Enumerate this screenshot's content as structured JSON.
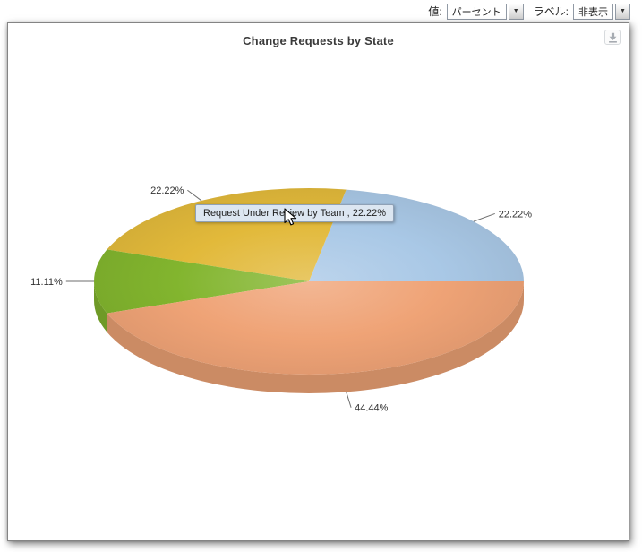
{
  "toolbar": {
    "value_label": "値:",
    "value_combobox": {
      "value": "パーセント",
      "expanded": false
    },
    "label_label": "ラベル:",
    "label_combobox": {
      "value": "非表示",
      "expanded": false
    }
  },
  "icons": {
    "chevron_down": "▼",
    "download": "download-icon"
  },
  "tooltip": {
    "text": "Request Under Review by Team , 22.22%"
  },
  "chart_data": {
    "type": "pie",
    "title": "Change Requests by State",
    "effect": "3d",
    "label_format": "percent",
    "legend": "none",
    "start_angle_deg": 0,
    "direction": "counterclockwise",
    "slices": [
      {
        "name": null,
        "value": 22.22,
        "label": "22.22%",
        "color": "#a9c8e6"
      },
      {
        "name": "Request Under Review by Team",
        "value": 22.22,
        "label": "22.22%",
        "color": "#e2b93a"
      },
      {
        "name": null,
        "value": 11.11,
        "label": "11.11%",
        "color": "#82b52e"
      },
      {
        "name": null,
        "value": 44.44,
        "label": "44.44%",
        "color": "#efa376"
      }
    ]
  }
}
